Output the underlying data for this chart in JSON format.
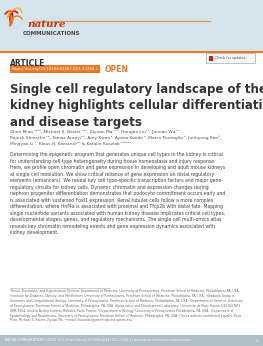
{
  "bg_header_color": "#d6e4ec",
  "bg_page_color": "#ffffff",
  "header_line_color": "#e8792a",
  "article_label": "ARTICLE",
  "doi_text": "https://doi.org/10.1038/s41467-021-22266-1",
  "doi_bg_color": "#e8792a",
  "doi_text_color": "#ffffff",
  "open_label": "OPEN",
  "open_color": "#e8792a",
  "title": "Single cell regulatory landscape of the mouse\nkidney highlights cellular differentiation programs\nand disease targets",
  "title_color": "#333333",
  "authors": "Zhen Miao ¹²³⁴, Michael S. Balzer ¹²⁸, Ziyuan Ma ¹²⁸, Hongbo Liu¹², Junnan Wu ¹²,\nRajesh Shrestha ¹², Tamas Aranyi¹², Amy Kwan⁴, Ayano Kondo ⁴, Marco Pontoglio ⁵, Junhyong Kim⁶,\nMingyao Li ⁷, Klaus H. Kaestner²⁸ & Katalin Susztak ¹²⁸⁹¹⁰",
  "authors_color": "#555555",
  "abstract_text": "Determining the epigenetic program that generates unique cell types in the kidney is critical\nfor understanding cell-type heterogeneity during tissue homeostasis and injury response.\nHere, we profile open chromatin and gene expression in developing and adult mouse kidneys\nat single cell resolution. We show critical reliance of gene expression on distal regulatory\nelements (enhancers). We reveal key cell type-specific transcription factors and major gene-\nregulatory circuits for kidney cells. Dynamic chromatin and expression changes during\nnephron progenitor differentiation demonstrates that podocyte commitment occurs early and\nis associated with sustained Foxl1 expression. Renal tubular cells follow a more complex\ndifferentiation, where Hnf4a is associated with proximal and Tfcp2b with distal fate. Mapping\nsingle nucleotide variants associated with human kidney disease implicates critical cell types,\ndevelopmental stages, genes, and regulatory mechanisms. The single cell multi-omics atlas\nreveals key chromatin remodeling events and gene expression dynamics associated with\nkidney development.",
  "abstract_color": "#444444",
  "footer_text": "¹Renal, Electrolyte, and Hypertension Division, Department of Medicine, University of Pennsylvania, Perelman School of Medicine, Philadelphia, PA, USA.\n²Institute for Diabetes, Obesity, and Metabolism, University of Pennsylvania, Perelman School of Medicine, Philadelphia, PA, USA. ³Graduate Group in\nGenomics and Computational Biology, University of Pennsylvania, Perelman School of Medicine, Philadelphia, PA, USA. ⁴Department of Genetics University\nof Pennsylvania, Perelman School of Medicine, Philadelphia, PA, USA. ⁵Epigenetics and Development Laboratory, Universite de Paris Inserm U1016/CNRS\nUMR 8104, Institut Necker Enfants Malades, Paris, France. ⁶Department of Biology, University of Pennsylvania Philadelphia, PA, USA. ⁷Department of\nEpidemiology and Biostatistics, University of Pennsylvania, Perelman School of Medicine, Philadelphia, PA, USA. ⁸These authors contributed equally: Zhen\nMiao, Michael S. Balzer, Ziyuan Ma. ¹⁸email: ksusztak@pennmedicine.upenn.edu",
  "footer_color": "#666666",
  "bottom_bar_text": "NATURE COMMUNICATIONS | (2021) 12:2 | https://doi.org/10.1038/s41467-021-22266-1 | www.nature.com/naturecommunications",
  "bottom_bar_color": "#b0bec5",
  "bottom_bar_text_color": "#ffffff",
  "page_number": "1",
  "check_updates_text": "Check for updates"
}
